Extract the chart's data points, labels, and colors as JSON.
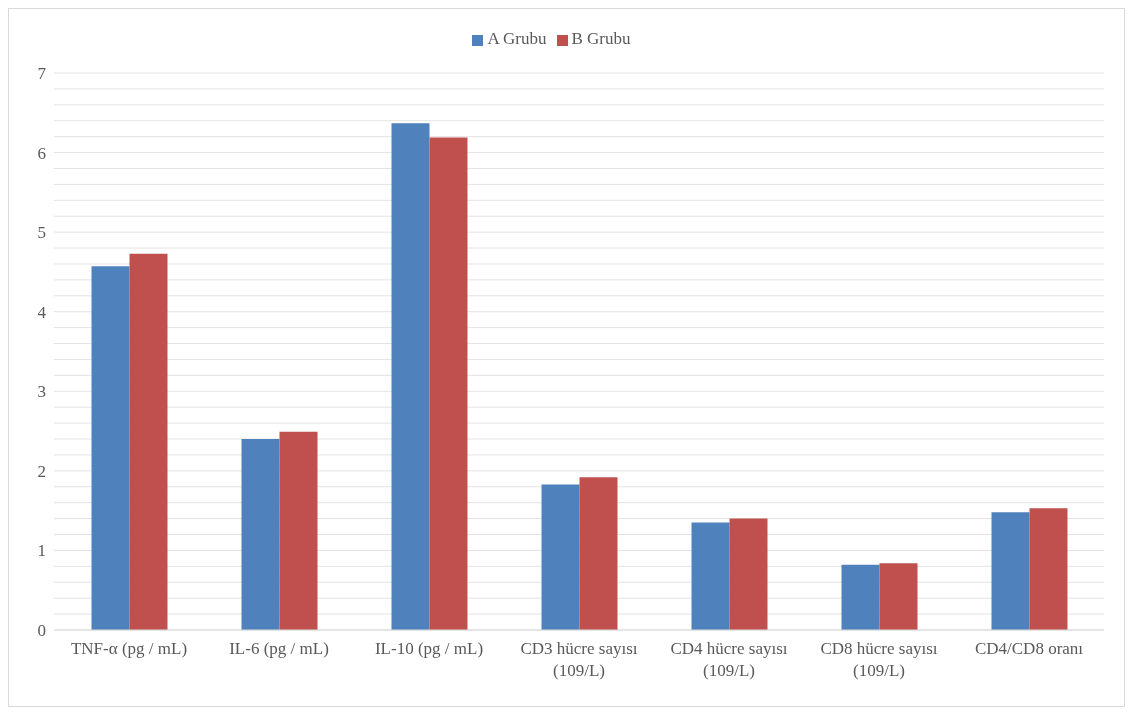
{
  "chart_data": {
    "type": "bar",
    "categories": [
      "TNF-α (pg / mL)",
      "IL-6 (pg / mL)",
      "IL-10 (pg / mL)",
      "CD3 hücre sayısı\n(109/L)",
      "CD4 hücre sayısı\n(109/L)",
      "CD8 hücre sayısı\n(109/L)",
      "CD4/CD8 oranı"
    ],
    "series": [
      {
        "name": "A Grubu",
        "color": "#4f81bd",
        "values": [
          4.57,
          2.4,
          6.37,
          1.83,
          1.35,
          0.82,
          1.48
        ]
      },
      {
        "name": "B Grubu",
        "color": "#c0504d",
        "values": [
          4.73,
          2.49,
          6.19,
          1.92,
          1.4,
          0.84,
          1.53
        ]
      }
    ],
    "ylim": [
      0,
      7
    ],
    "yticks": [
      0,
      {
        "value": 0.2,
        "label": null
      },
      {
        "value": 0.4,
        "label": null
      },
      {
        "value": 0.6,
        "label": null
      },
      {
        "value": 0.8,
        "label": null
      },
      1,
      {
        "value": 1.2,
        "label": null
      },
      {
        "value": 1.4,
        "label": null
      },
      {
        "value": 1.6,
        "label": null
      },
      {
        "value": 1.8,
        "label": null
      },
      2,
      {
        "value": 2.2,
        "label": null
      },
      {
        "value": 2.4,
        "label": null
      },
      {
        "value": 2.6,
        "label": null
      },
      {
        "value": 2.8,
        "label": null
      },
      3,
      {
        "value": 3.2,
        "label": null
      },
      {
        "value": 3.4,
        "label": null
      },
      {
        "value": 3.6,
        "label": null
      },
      {
        "value": 3.8,
        "label": null
      },
      4,
      {
        "value": 4.2,
        "label": null
      },
      {
        "value": 4.4,
        "label": null
      },
      {
        "value": 4.6,
        "label": null
      },
      {
        "value": 4.8,
        "label": null
      },
      5,
      {
        "value": 5.2,
        "label": null
      },
      {
        "value": 5.4,
        "label": null
      },
      {
        "value": 5.6,
        "label": null
      },
      {
        "value": 5.8,
        "label": null
      },
      6,
      {
        "value": 6.2,
        "label": null
      },
      {
        "value": 6.4,
        "label": null
      },
      {
        "value": 6.6,
        "label": null
      },
      {
        "value": 6.8,
        "label": null
      },
      7
    ],
    "grid": "y",
    "legend": "top"
  }
}
